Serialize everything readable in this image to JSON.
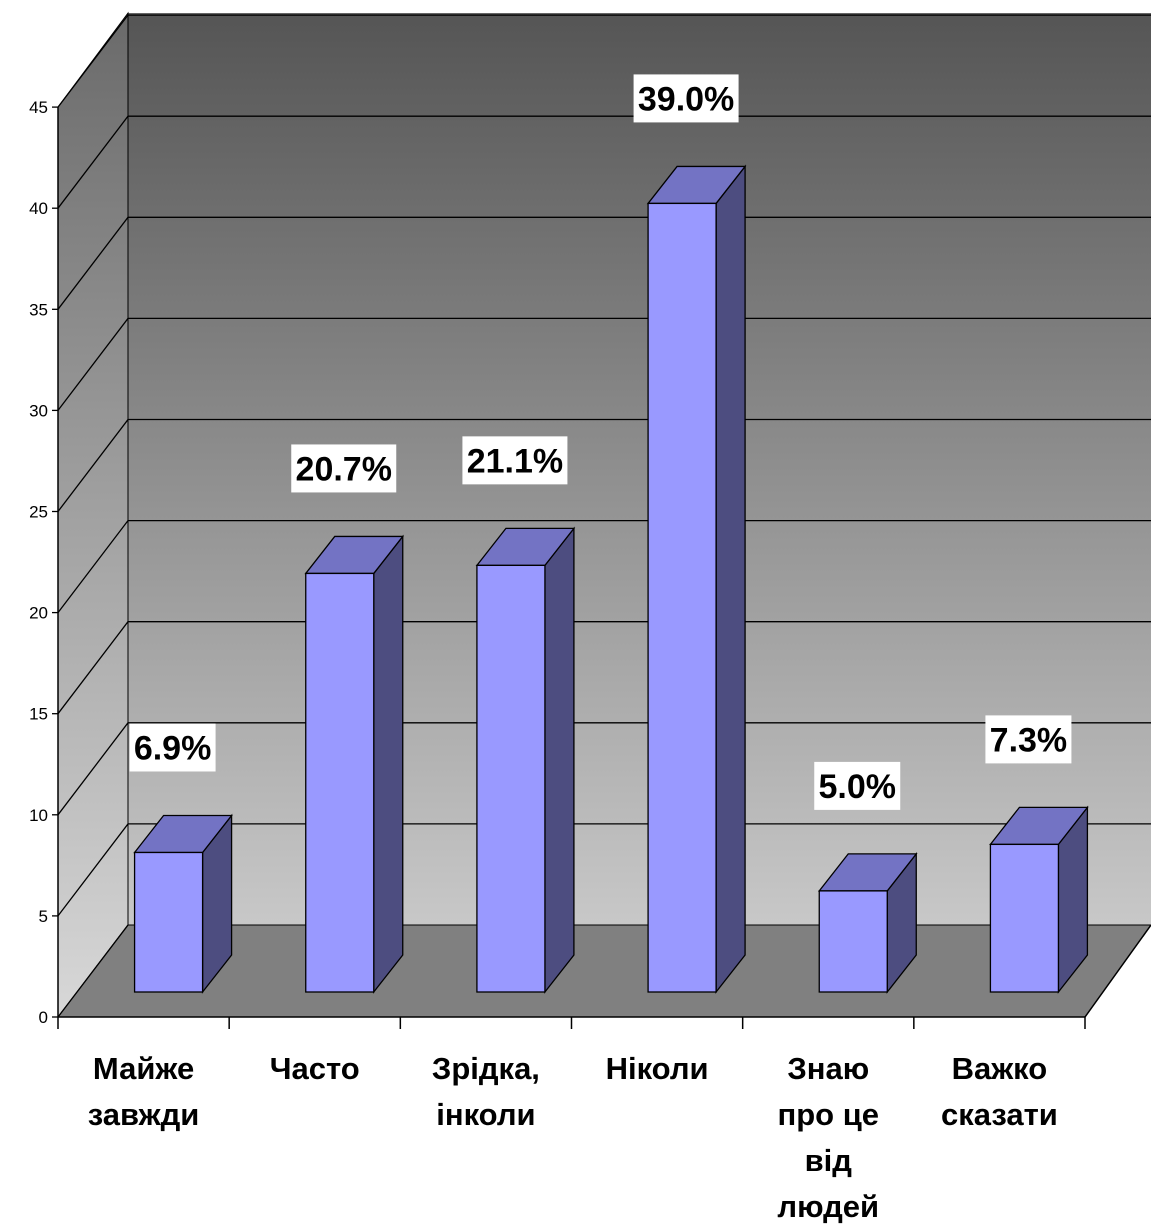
{
  "chart_data": {
    "type": "bar",
    "style": "3d-column",
    "categories": [
      [
        "Майже",
        "завжди"
      ],
      [
        "Часто"
      ],
      [
        "Зрідка,",
        "інколи"
      ],
      [
        "Ніколи"
      ],
      [
        "Знаю",
        "про це",
        "від",
        "людей"
      ],
      [
        "Важко",
        "сказати"
      ]
    ],
    "values": [
      6.9,
      20.7,
      21.1,
      39.0,
      5.0,
      7.3
    ],
    "data_labels": [
      "6.9%",
      "20.7%",
      "21.1%",
      "39.0%",
      "5.0%",
      "7.3%"
    ],
    "ylim": [
      0,
      45
    ],
    "yticks": [
      0,
      5,
      10,
      15,
      20,
      25,
      30,
      35,
      40,
      45
    ],
    "grid": true,
    "colors": {
      "bar_front": "#9999FF",
      "bar_top": "#7373C4",
      "bar_side": "#4D4D80",
      "floor": "#808080",
      "wall_top": "#555555",
      "wall_bottom": "#C8C8C8"
    }
  }
}
